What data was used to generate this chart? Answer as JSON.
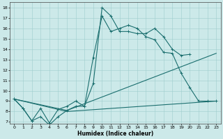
{
  "xlabel": "Humidex (Indice chaleur)",
  "xlim": [
    -0.5,
    23.5
  ],
  "ylim": [
    6.8,
    18.5
  ],
  "xticks": [
    0,
    1,
    2,
    3,
    4,
    5,
    6,
    7,
    8,
    9,
    10,
    11,
    12,
    13,
    14,
    15,
    16,
    17,
    18,
    19,
    20,
    21,
    22,
    23
  ],
  "yticks": [
    7,
    8,
    9,
    10,
    11,
    12,
    13,
    14,
    15,
    16,
    17,
    18
  ],
  "bg_color": "#cce9e9",
  "line_color": "#1a6e6e",
  "lines": [
    {
      "x": [
        0,
        1,
        2,
        3,
        4,
        5,
        6,
        7,
        8,
        9,
        10,
        11,
        12,
        13,
        14,
        15,
        16,
        17,
        18,
        19,
        20,
        21,
        22,
        23
      ],
      "y": [
        9.2,
        8.3,
        7.1,
        8.3,
        6.9,
        8.2,
        8.5,
        9.0,
        8.5,
        13.2,
        17.2,
        15.7,
        16.0,
        16.3,
        16.0,
        15.2,
        14.9,
        13.7,
        13.6,
        11.7,
        10.3,
        9.0,
        9.0,
        9.0
      ],
      "marker": "+",
      "linestyle": "-"
    },
    {
      "x": [
        0,
        1,
        2,
        3,
        4,
        5,
        6,
        7,
        8,
        9,
        10,
        11,
        12,
        13,
        14,
        15,
        16,
        17,
        18,
        19,
        20
      ],
      "y": [
        9.2,
        8.3,
        7.1,
        7.5,
        6.7,
        7.5,
        8.1,
        8.5,
        8.5,
        10.7,
        18.0,
        17.2,
        15.7,
        15.7,
        15.5,
        15.5,
        16.0,
        15.2,
        14.0,
        13.4,
        13.5
      ],
      "marker": "+",
      "linestyle": "-"
    },
    {
      "x": [
        0,
        6,
        23
      ],
      "y": [
        9.2,
        8.1,
        13.6
      ],
      "marker": null,
      "linestyle": "-"
    },
    {
      "x": [
        0,
        6,
        23
      ],
      "y": [
        9.2,
        8.0,
        9.0
      ],
      "marker": null,
      "linestyle": "-"
    }
  ]
}
